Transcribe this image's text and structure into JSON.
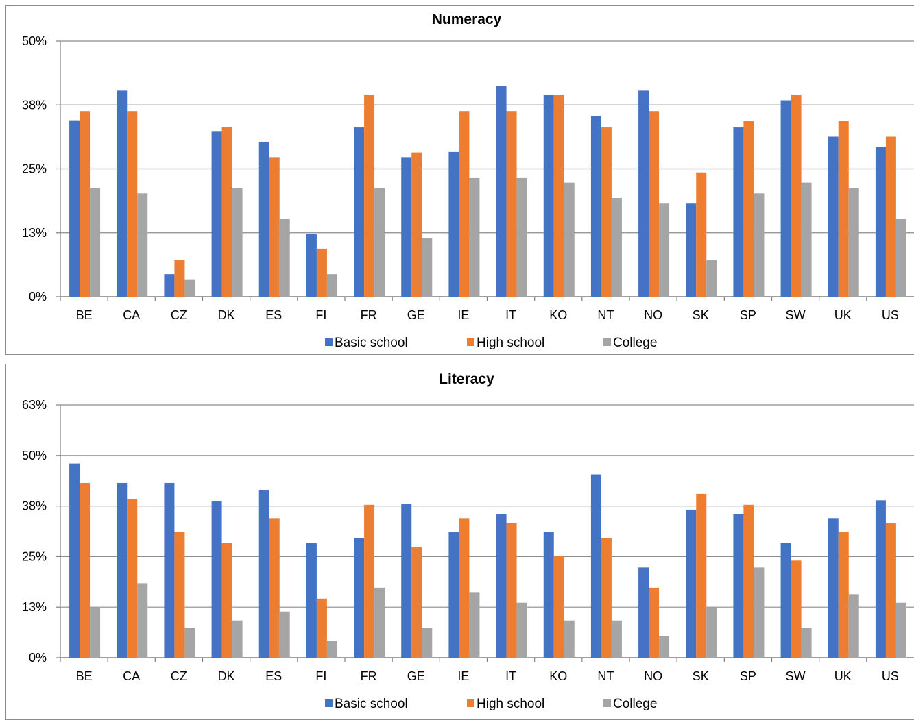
{
  "chart_data": [
    {
      "type": "bar",
      "title": "Numeracy",
      "categories": [
        "BE",
        "CA",
        "CZ",
        "DK",
        "ES",
        "FI",
        "FR",
        "GE",
        "IE",
        "IT",
        "KO",
        "NT",
        "NO",
        "SK",
        "SP",
        "SW",
        "UK",
        "US"
      ],
      "yticks": [
        "0%",
        "13%",
        "25%",
        "38%",
        "50%"
      ],
      "ylim": [
        0,
        50
      ],
      "series": [
        {
          "name": "Basic school",
          "color": "#4472c4",
          "values": [
            34.5,
            40.3,
            4.4,
            32.4,
            30.3,
            12.2,
            33.1,
            27.3,
            28.3,
            41.2,
            39.5,
            35.3,
            40.3,
            18.2,
            33.1,
            38.4,
            31.3,
            29.3
          ]
        },
        {
          "name": "High school",
          "color": "#ed7d31",
          "values": [
            36.3,
            36.3,
            7.1,
            33.2,
            27.3,
            9.4,
            39.5,
            28.2,
            36.3,
            36.3,
            39.5,
            33.1,
            36.3,
            24.3,
            34.4,
            39.5,
            34.4,
            31.3
          ]
        },
        {
          "name": "College",
          "color": "#a5a5a5",
          "values": [
            21.2,
            20.2,
            3.4,
            21.2,
            15.2,
            4.4,
            21.2,
            11.4,
            23.2,
            23.2,
            22.3,
            19.3,
            18.2,
            7.1,
            20.2,
            22.3,
            21.2,
            15.2
          ]
        }
      ],
      "legend": "bottom",
      "grid": true
    },
    {
      "type": "bar",
      "title": "Literacy",
      "categories": [
        "BE",
        "CA",
        "CZ",
        "DK",
        "ES",
        "FI",
        "FR",
        "GE",
        "IE",
        "IT",
        "KO",
        "NT",
        "NO",
        "SK",
        "SP",
        "SW",
        "UK",
        "US"
      ],
      "yticks": [
        "0%",
        "13%",
        "25%",
        "38%",
        "50%",
        "63%"
      ],
      "ylim": [
        0,
        62.5
      ],
      "series": [
        {
          "name": "Basic school",
          "color": "#4472c4",
          "values": [
            48.0,
            43.2,
            43.2,
            38.7,
            41.5,
            28.3,
            29.6,
            38.1,
            31.0,
            35.4,
            31.0,
            45.3,
            22.3,
            36.6,
            35.4,
            28.3,
            34.5,
            38.9
          ]
        },
        {
          "name": "High school",
          "color": "#ed7d31",
          "values": [
            43.2,
            39.3,
            31.0,
            28.3,
            34.5,
            14.6,
            37.8,
            27.3,
            34.5,
            33.2,
            25.1,
            29.6,
            17.3,
            40.5,
            37.8,
            24.0,
            31.0,
            33.2
          ]
        },
        {
          "name": "College",
          "color": "#a5a5a5",
          "values": [
            12.5,
            18.4,
            7.3,
            9.2,
            11.4,
            4.2,
            17.3,
            7.3,
            16.2,
            13.6,
            9.2,
            9.2,
            5.3,
            12.5,
            22.3,
            7.3,
            15.7,
            13.6
          ]
        }
      ],
      "legend": "bottom",
      "grid": true
    }
  ]
}
